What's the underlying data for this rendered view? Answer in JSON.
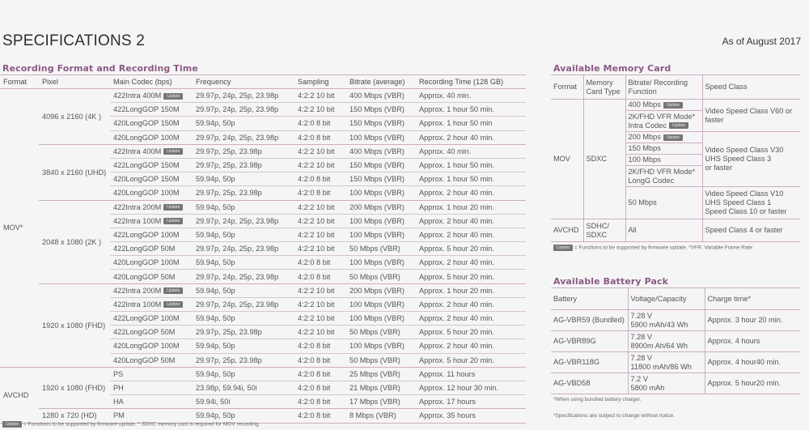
{
  "page": {
    "title": "SPECIFICATIONS 2",
    "as_of": "As of August 2017",
    "badge_label": "Update"
  },
  "recording": {
    "title": "Recording Format and Recording Time",
    "headers": [
      "Format",
      "Pixel",
      "Main Codec  (bps)",
      "Frequency",
      "Sampling",
      "Bitrate (average)",
      "Recording Time  (128 GB)"
    ],
    "formats": [
      {
        "format": "MOV*",
        "groups": [
          {
            "pixel": "4096 x 2160 (4K )",
            "rows": [
              {
                "codec": "422Intra 400M",
                "update": true,
                "freq": "29.97p, 24p, 25p, 23.98p",
                "sampling": "4:2:2  10 bit",
                "bitrate": "400 Mbps (VBR)",
                "time": "Approx. 40 min."
              },
              {
                "codec": "422LongGOP 150M",
                "update": false,
                "freq": "29.97p, 24p, 25p, 23.98p",
                "sampling": "4:2:2  10 bit",
                "bitrate": "150 Mbps (VBR)",
                "time": "Approx.  1  hour 50 min."
              },
              {
                "codec": "420LongGOP 150M",
                "update": false,
                "freq": "59.94p, 50p",
                "sampling": "4:2:0  8 bit",
                "bitrate": "150 Mbps (VBR)",
                "time": "Approx.  1  hour 50 min"
              },
              {
                "codec": "420LongGOP 100M",
                "update": false,
                "freq": "29.97p, 24p, 25p, 23.98p",
                "sampling": "4:2:0  8 bit",
                "bitrate": "100 Mbps (VBR)",
                "time": "Approx. 2 hour 40 min."
              }
            ]
          },
          {
            "pixel": "3840 x 2160 (UHD)",
            "rows": [
              {
                "codec": "422Intra 400M",
                "update": true,
                "freq": "29.97p, 25p, 23.98p",
                "sampling": "4:2:2  10 bit",
                "bitrate": "400 Mbps (VBR)",
                "time": "Approx. 40 min."
              },
              {
                "codec": "422LongGOP 150M",
                "update": false,
                "freq": "29.97p, 25p, 23.98p",
                "sampling": "4:2:2  10 bit",
                "bitrate": "150 Mbps (VBR)",
                "time": "Approx.  1  hour 50 min."
              },
              {
                "codec": "420LongGOP 150M",
                "update": false,
                "freq": "59.94p, 50p",
                "sampling": "4:2:0  8 bit",
                "bitrate": "150 Mbps (VBR)",
                "time": "Approx.  1  hour 50 min."
              },
              {
                "codec": "420LongGOP 100M",
                "update": false,
                "freq": "29.97p, 25p, 23.98p",
                "sampling": "4:2:0  8 bit",
                "bitrate": "100 Mbps (VBR)",
                "time": "Approx. 2 hour 40 min."
              }
            ]
          },
          {
            "pixel": "2048 x 1080 (2K )",
            "rows": [
              {
                "codec": "422Intra 200M",
                "update": true,
                "freq": "59.94p, 50p",
                "sampling": "4:2:2  10 bit",
                "bitrate": "200 Mbps (VBR)",
                "time": "Approx.  1  hour 20 min."
              },
              {
                "codec": "422Intra 100M",
                "update": true,
                "freq": "29.97p, 24p, 25p, 23.98p",
                "sampling": "4:2:2  10 bit",
                "bitrate": "100 Mbps (VBR)",
                "time": "Approx. 2 hour 40 min."
              },
              {
                "codec": "422LongGOP 100M",
                "update": false,
                "freq": "59.94p, 50p",
                "sampling": "4:2:2  10 bit",
                "bitrate": "100 Mbps (VBR)",
                "time": "Approx. 2 hour 40 min."
              },
              {
                "codec": "422LongGOP  50M",
                "update": false,
                "freq": "29.97p, 24p, 25p, 23.98p",
                "sampling": "4:2:2  10 bit",
                "bitrate": "50 Mbps (VBR)",
                "time": "Approx. 5 hour 20 min."
              },
              {
                "codec": "420LongGOP 100M",
                "update": false,
                "freq": "59.94p, 50p",
                "sampling": "4:2:0  8 bit",
                "bitrate": "100 Mbps (VBR)",
                "time": "Approx. 2 hour 40 min."
              },
              {
                "codec": "420LongGOP 50M",
                "update": false,
                "freq": "29.97p, 24p, 25p, 23.98p",
                "sampling": "4:2:0  8 bit",
                "bitrate": "50 Mbps (VBR)",
                "time": "Approx. 5 hour 20 min."
              }
            ]
          },
          {
            "pixel": "1920 x 1080 (FHD)",
            "rows": [
              {
                "codec": "422Intra 200M",
                "update": true,
                "freq": "59.94p, 50p",
                "sampling": "4:2:2  10 bit",
                "bitrate": "200 Mbps (VBR)",
                "time": "Approx.  1  hour 20 min."
              },
              {
                "codec": "422Intra 100M",
                "update": true,
                "freq": "29.97p, 24p, 25p, 23.98p",
                "sampling": "4:2:2  10 bit",
                "bitrate": "100 Mbps (VBR)",
                "time": "Approx. 2 hour 40 min."
              },
              {
                "codec": "422LongGOP 100M",
                "update": false,
                "freq": "59.94p, 50p",
                "sampling": "4:2:2  10 bit",
                "bitrate": "100 Mbps (VBR)",
                "time": "Approx. 2 hour 40 min."
              },
              {
                "codec": "422LongGOP 50M",
                "update": false,
                "freq": "29.97p, 25p, 23.98p",
                "sampling": "4:2:2  10 bit",
                "bitrate": "50 Mbps (VBR)",
                "time": "Approx. 5 hour 20 min."
              },
              {
                "codec": "420LongGOP 100M",
                "update": false,
                "freq": "59.94p, 50p",
                "sampling": "4:2:0  8 bit",
                "bitrate": "100 Mbps (VBR)",
                "time": "Approx. 2 hour 40 min."
              },
              {
                "codec": "420LongGOP 50M",
                "update": false,
                "freq": "29.97p, 25p, 23.98p",
                "sampling": "4:2:0  8 bit",
                "bitrate": "50 Mbps (VBR)",
                "time": "Approx. 5 hour 20 min."
              }
            ]
          }
        ]
      },
      {
        "format": "AVCHD",
        "groups": [
          {
            "pixel": "1920 x 1080 (FHD)",
            "rows": [
              {
                "codec": "PS",
                "update": false,
                "freq": "59.94p, 50p",
                "sampling": "4:2:0  8 bit",
                "bitrate": "25 Mbps (VBR)",
                "time": "Approx. 11 hours"
              },
              {
                "codec": "PH",
                "update": false,
                "freq": "23.98p, 59.94i, 50i",
                "sampling": "4:2:0  8 bit",
                "bitrate": "21 Mbps (VBR)",
                "time": "Approx. 12 hour 30 min."
              },
              {
                "codec": "HA",
                "update": false,
                "freq": "59.94i, 50i",
                "sampling": "4:2:0  8 bit",
                "bitrate": "17 Mbps (VBR)",
                "time": "Approx. 17 hours"
              }
            ]
          },
          {
            "pixel": "1280 x 720 (HD)",
            "rows": [
              {
                "codec": "PM",
                "update": false,
                "freq": "59.94p, 50p",
                "sampling": "4:2:0  8 bit",
                "bitrate": "8 Mbps (VBR)",
                "time": "Approx. 35 hours"
              }
            ]
          }
        ]
      }
    ],
    "footnote": "= Functions to be supported by firmware update.  * SDXC memory card is required for MOV recording."
  },
  "memory": {
    "title": "Available Memory Card",
    "headers": [
      "Format",
      "Memory Card Type",
      "Bitrate/ Recording Function",
      "Speed Class"
    ],
    "mov_format": "MOV",
    "mov_card": "SDXC",
    "rows": {
      "r400": "400 Mbps",
      "r2k_intra_1": "2K/FHD VFR Mode*",
      "r2k_intra_2": "Intra Codec",
      "v60": "Video Speed Class V60 or faster",
      "r200": "200 Mbps",
      "r150": "150 Mbps",
      "r100": "100 Mbps",
      "r2k_long_1": "2K/FHD VFR Mode*",
      "r2k_long_2": "LongG Codec",
      "v30_1": "Video Speed Class V30",
      "v30_2": "UHS Speed Class 3",
      "v30_3": "or faster",
      "r50": "50 Mbps",
      "v10_1": "Video Speed Class V10",
      "v10_2": "UHS Speed Class 1",
      "v10_3": "Speed Class 10 or faster"
    },
    "avchd_format": "AVCHD",
    "avchd_card": "SDHC/ SDXC",
    "avchd_bitrate": "All",
    "avchd_speed": "Speed Class  4  or faster",
    "footnote": "= Functions to be supported by firmware update. *VFR: Variable Frame Rate"
  },
  "battery": {
    "title": "Available Battery Pack",
    "headers": [
      "Battery",
      "Voltage/Capacity",
      "Charge time*"
    ],
    "rows": [
      {
        "name": "AG-VBR59 (Bundled)",
        "voltage": "7.28 V",
        "capacity": "5900 mAh/43 Wh",
        "charge": "Approx. 3 hour 20 min."
      },
      {
        "name": "AG-VBR89G",
        "voltage": "7.28 V",
        "capacity": "8900m Ah/64 Wh",
        "charge": "Approx. 4 hours"
      },
      {
        "name": "AG-VBR118G",
        "voltage": "7.28 V",
        "capacity": "11800 mAh/86 Wh",
        "charge": "Approx. 4 hour40  min."
      },
      {
        "name": "AG-VBD58",
        "voltage": "7.2 V",
        "capacity": "5800 mAh",
        "charge": "Approx. 5 hour20 min."
      }
    ],
    "note1": "*When using bundled battery charger.",
    "note2": "*Specifications are subject to change without notice."
  },
  "colors": {
    "accent": "#8a5a83",
    "rule": "#c9adc4",
    "badge": "#767676",
    "background": "#f6f5f6"
  }
}
